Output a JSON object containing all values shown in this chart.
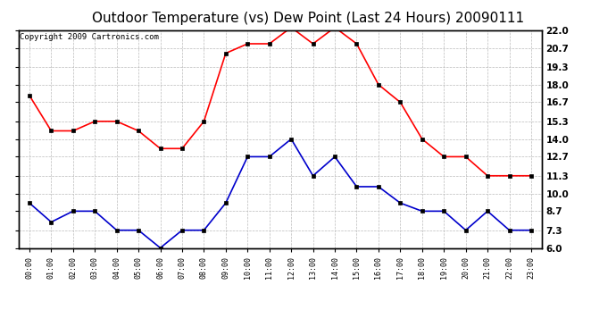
{
  "title": "Outdoor Temperature (vs) Dew Point (Last 24 Hours) 20090111",
  "copyright": "Copyright 2009 Cartronics.com",
  "x_labels": [
    "00:00",
    "01:00",
    "02:00",
    "03:00",
    "04:00",
    "05:00",
    "06:00",
    "07:00",
    "08:00",
    "09:00",
    "10:00",
    "11:00",
    "12:00",
    "13:00",
    "14:00",
    "15:00",
    "16:00",
    "17:00",
    "18:00",
    "19:00",
    "20:00",
    "21:00",
    "22:00",
    "23:00"
  ],
  "temp_data": [
    17.2,
    14.6,
    14.6,
    15.3,
    15.3,
    14.6,
    13.3,
    13.3,
    15.3,
    20.3,
    21.0,
    21.0,
    22.2,
    21.0,
    22.2,
    21.0,
    18.0,
    16.7,
    14.0,
    12.7,
    12.7,
    11.3,
    11.3,
    11.3
  ],
  "dew_data": [
    9.3,
    7.9,
    8.7,
    8.7,
    7.3,
    7.3,
    6.0,
    7.3,
    7.3,
    9.3,
    12.7,
    12.7,
    14.0,
    11.3,
    12.7,
    10.5,
    10.5,
    9.3,
    8.7,
    8.7,
    7.3,
    8.7,
    7.3,
    7.3
  ],
  "temp_color": "#FF0000",
  "dew_color": "#0000CC",
  "bg_color": "#FFFFFF",
  "plot_bg_color": "#FFFFFF",
  "grid_color": "#BBBBBB",
  "ylim": [
    6.0,
    22.0
  ],
  "yticks": [
    6.0,
    7.3,
    8.7,
    10.0,
    11.3,
    12.7,
    14.0,
    15.3,
    16.7,
    18.0,
    19.3,
    20.7,
    22.0
  ],
  "title_fontsize": 11,
  "copyright_fontsize": 6.5,
  "marker": "s",
  "marker_size": 2.5,
  "line_width": 1.2
}
